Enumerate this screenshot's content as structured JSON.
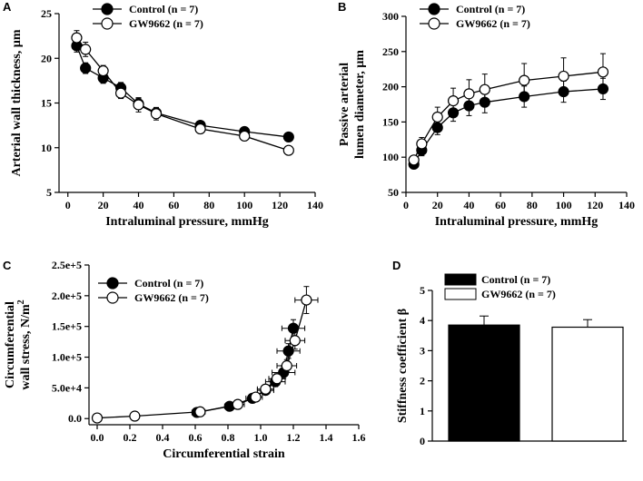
{
  "colors": {
    "control": "#000000",
    "gw": "#ffffff",
    "stroke": "#000000"
  },
  "chart_data": [
    {
      "panel": "A",
      "type": "line",
      "xlabel": "Intraluminal pressure, mmHg",
      "ylabel": "Arterial wall thickness, µm",
      "xlim": [
        -5,
        140
      ],
      "ylim": [
        5,
        25
      ],
      "xticks": [
        0,
        20,
        40,
        60,
        80,
        100,
        120,
        140
      ],
      "yticks": [
        5,
        10,
        15,
        20,
        25
      ],
      "legend": "top-left",
      "series": [
        {
          "name": "Control",
          "label": "Control   (n = 7)",
          "fill": "black",
          "x": [
            5,
            10,
            20,
            30,
            40,
            50,
            75,
            100,
            125
          ],
          "y": [
            21.4,
            18.9,
            17.8,
            16.7,
            14.9,
            13.9,
            12.5,
            11.8,
            11.2
          ],
          "yerr": [
            0.7,
            0.6,
            0.6,
            0.6,
            0.6,
            0.6,
            0.4,
            0.3,
            0.3
          ]
        },
        {
          "name": "GW9662",
          "label": "GW9662 (n = 7)",
          "fill": "white",
          "x": [
            5,
            10,
            20,
            30,
            40,
            50,
            75,
            100,
            125
          ],
          "y": [
            22.3,
            21.0,
            18.6,
            16.1,
            14.8,
            13.8,
            12.1,
            11.3,
            9.7
          ],
          "yerr": [
            0.8,
            0.8,
            0.6,
            0.6,
            0.8,
            0.7,
            0.4,
            0.3,
            0.2
          ]
        }
      ]
    },
    {
      "panel": "B",
      "type": "line",
      "xlabel": "Intraluminal pressure, mmHg",
      "ylabel_line1": "Passive arterial",
      "ylabel_line2": "lumen diameter, µm",
      "xlim": [
        0,
        140
      ],
      "ylim": [
        50,
        300
      ],
      "xticks": [
        0,
        20,
        40,
        60,
        80,
        100,
        120,
        140
      ],
      "yticks": [
        50,
        100,
        150,
        200,
        250,
        300
      ],
      "legend": "top-left",
      "series": [
        {
          "name": "Control",
          "label": "Control   (n = 7)",
          "fill": "black",
          "x": [
            5,
            10,
            20,
            30,
            40,
            50,
            75,
            100,
            125
          ],
          "y": [
            90,
            110,
            142,
            163,
            173,
            178,
            186,
            193,
            197
          ],
          "yerr": [
            5,
            8,
            10,
            12,
            14,
            15,
            15,
            15,
            15
          ]
        },
        {
          "name": "GW9662",
          "label": "GW9662 (n = 7)",
          "fill": "white",
          "x": [
            5,
            10,
            20,
            30,
            40,
            50,
            75,
            100,
            125
          ],
          "y": [
            96,
            119,
            157,
            180,
            190,
            196,
            209,
            215,
            221
          ],
          "yerr": [
            6,
            9,
            14,
            18,
            20,
            22,
            24,
            26,
            26
          ]
        }
      ]
    },
    {
      "panel": "C",
      "type": "scatter",
      "xlabel": "Circumferential strain",
      "ylabel_line1": "Circumferential",
      "ylabel_line2": "wall stress, N/m",
      "ylabel_sup": "2",
      "xlim": [
        -0.05,
        1.6
      ],
      "ylim": [
        -10000,
        250000
      ],
      "xticks": [
        0.0,
        0.2,
        0.4,
        0.6,
        0.8,
        1.0,
        1.2,
        1.4,
        1.6
      ],
      "xtick_labels": [
        "0.0",
        "0.2",
        "0.4",
        "0.6",
        "0.8",
        "1.0",
        "1.2",
        "1.4",
        "1.6"
      ],
      "yticks": [
        0,
        50000,
        100000,
        150000,
        200000,
        250000
      ],
      "ytick_labels": [
        "0.0",
        "5.0e+4",
        "1.0e+5",
        "1.5e+5",
        "2.0e+5",
        "2.5e+5"
      ],
      "legend": "top-left",
      "series": [
        {
          "name": "Control",
          "label": "Control   (n = 7)",
          "fill": "black",
          "x": [
            0.61,
            0.81,
            0.95,
            1.03,
            1.09,
            1.14,
            1.17,
            1.2
          ],
          "y": [
            10000,
            20000,
            33000,
            46000,
            60000,
            75000,
            110000,
            147000
          ],
          "xerr": [
            0.03,
            0.03,
            0.04,
            0.05,
            0.06,
            0.07,
            0.07,
            0.07
          ],
          "yerr": [
            2000,
            3000,
            5000,
            6000,
            8000,
            10000,
            12000,
            14000
          ]
        },
        {
          "name": "GW9662",
          "label": "GW9662 (n = 7)",
          "fill": "white",
          "x": [
            0.0,
            0.23,
            0.63,
            0.86,
            0.97,
            1.03,
            1.1,
            1.16,
            1.21,
            1.28
          ],
          "y": [
            1000,
            4000,
            11000,
            23000,
            35000,
            48000,
            65000,
            86000,
            127000,
            193000
          ],
          "xerr": [
            0.0,
            0.02,
            0.03,
            0.04,
            0.04,
            0.05,
            0.05,
            0.06,
            0.06,
            0.07
          ],
          "yerr": [
            0,
            1000,
            2000,
            3000,
            5000,
            6000,
            8000,
            10000,
            14000,
            22000
          ]
        }
      ]
    },
    {
      "panel": "D",
      "type": "bar",
      "ylabel": "Stiffness coefficient β",
      "ylim": [
        0,
        5
      ],
      "yticks": [
        0,
        1,
        2,
        3,
        4,
        5
      ],
      "legend": "top",
      "categories": [
        "Control",
        "GW9662"
      ],
      "series": [
        {
          "name": "Control",
          "label": "Control   (n = 7)",
          "fill": "black",
          "value": 3.85,
          "err": 0.3
        },
        {
          "name": "GW9662",
          "label": "GW9662 (n = 7)",
          "fill": "white",
          "value": 3.78,
          "err": 0.25
        }
      ]
    }
  ]
}
